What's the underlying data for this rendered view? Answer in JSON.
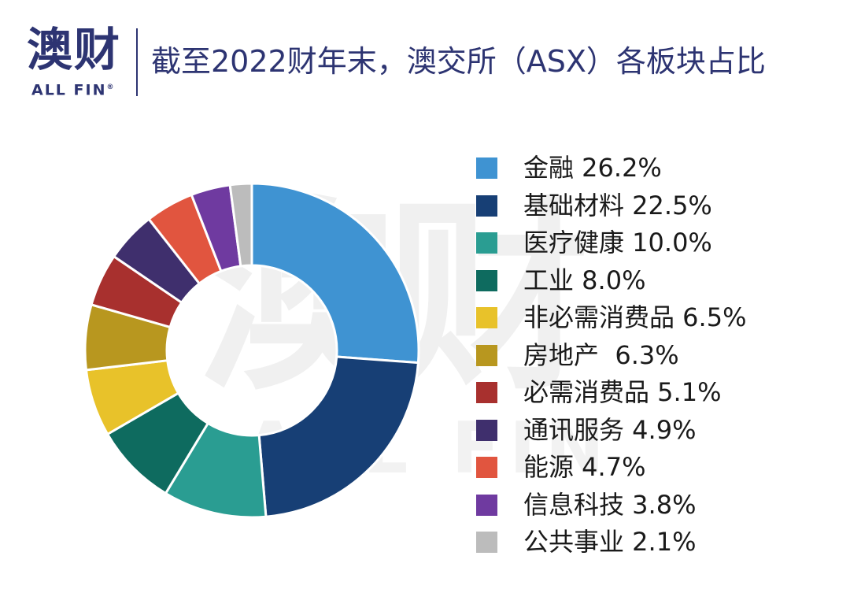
{
  "header": {
    "logo_cn": "澳财",
    "logo_en": "ALL FIN",
    "logo_mark": "®",
    "title": "截至2022财年末，澳交所（ASX）各板块占比"
  },
  "watermark": {
    "cn": "澳财",
    "en": "ALL FIN"
  },
  "chart_data": {
    "type": "pie",
    "donut": true,
    "legend_position": "right",
    "start_angle": "top, clockwise",
    "categories": [
      "金融",
      "基础材料",
      "医疗健康",
      "工业",
      "非必需消费品",
      "房地产",
      "必需消费品",
      "通讯服务",
      "能源",
      "信息科技",
      "公共事业"
    ],
    "values": [
      26.2,
      22.5,
      10.0,
      8.0,
      6.5,
      6.3,
      5.1,
      4.9,
      4.7,
      3.8,
      2.1
    ],
    "colors": [
      "#3f93d2",
      "#173f75",
      "#2a9d92",
      "#0e6b5f",
      "#e8c22a",
      "#b8971f",
      "#a8302e",
      "#3f2f6d",
      "#e1553f",
      "#6f3aa0",
      "#bcbcbc"
    ],
    "legend_labels": [
      "金融 26.2%",
      "基础材料 22.5%",
      "医疗健康 10.0%",
      "工业 8.0%",
      "非必需消费品 6.5%",
      "房地产  6.3%",
      "必需消费品 5.1%",
      "通讯服务 4.9%",
      "能源 4.7%",
      "信息科技 3.8%",
      "公共事业 2.1%"
    ]
  }
}
